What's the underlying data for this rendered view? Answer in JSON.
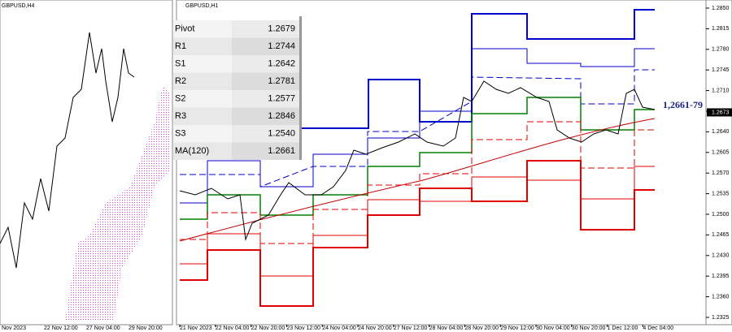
{
  "left_chart": {
    "title": "GBPUSD,H4",
    "x_labels": [
      "Nov 2023",
      "22 Nov 12:00",
      "27 Nov 04:00",
      "29 Nov 20:00"
    ]
  },
  "right_chart": {
    "title": "GBPUSD,H1",
    "ylim": [
      1.2325,
      1.285
    ],
    "yticks": [
      {
        "value": 1.285,
        "label": "1.2850"
      },
      {
        "value": 1.2815,
        "label": "1.2815"
      },
      {
        "value": 1.278,
        "label": "1.2780"
      },
      {
        "value": 1.2745,
        "label": "1.2745"
      },
      {
        "value": 1.271,
        "label": "1.2710"
      },
      {
        "value": 1.2675,
        "label": "1.2675"
      },
      {
        "value": 1.264,
        "label": "1.2640"
      },
      {
        "value": 1.2605,
        "label": "1.2605"
      },
      {
        "value": 1.257,
        "label": "1.2570"
      },
      {
        "value": 1.2535,
        "label": "1.2535"
      },
      {
        "value": 1.25,
        "label": "1.2500"
      },
      {
        "value": 1.2465,
        "label": "1.2465"
      },
      {
        "value": 1.243,
        "label": "1.2430"
      },
      {
        "value": 1.2395,
        "label": "1.2395"
      },
      {
        "value": 1.236,
        "label": "1.2360"
      },
      {
        "value": 1.2325,
        "label": "1.2325"
      }
    ],
    "current_price": {
      "value": 1.2673,
      "label": "1.2673"
    },
    "annotation": "1,2661-79",
    "x_labels": [
      "21 Nov 2023",
      "22 Nov 04:00",
      "22 Nov 20:00",
      "23 Nov 12:00",
      "24 Nov 04:00",
      "24 Nov 20:00",
      "27 Nov 12:00",
      "28 Nov 04:00",
      "28 Nov 20:00",
      "29 Nov 12:00",
      "30 Nov 04:00",
      "30 Nov 20:00",
      "1 Dec 12:00",
      "4 Dec 04:00"
    ]
  },
  "pivot_table": {
    "rows": [
      [
        "Pivot",
        "1.2679"
      ],
      [
        "R1",
        "1.2744"
      ],
      [
        "S1",
        "1.2642"
      ],
      [
        "R2",
        "1.2781"
      ],
      [
        "S2",
        "1.2577"
      ],
      [
        "R3",
        "1.2846"
      ],
      [
        "S3",
        "1.2540"
      ],
      [
        "MA(120)",
        "1.2661"
      ]
    ]
  }
}
